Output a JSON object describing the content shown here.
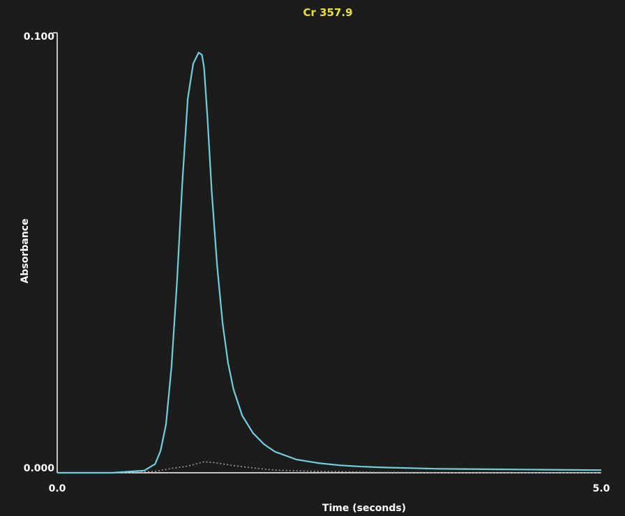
{
  "chart_data": {
    "type": "line",
    "title": "Cr 357.9",
    "xlabel": "Time (seconds)",
    "ylabel": "Absorbance",
    "xlim": [
      0.0,
      5.0
    ],
    "ylim": [
      0.0,
      0.1
    ],
    "x_tick_labels": [
      "0.0",
      "5.0"
    ],
    "y_tick_labels": [
      "0.000",
      "0.100"
    ],
    "grid": false,
    "colors": {
      "background": "#1c1c1c",
      "title": "#e8e03a",
      "axes": "#ffffff",
      "signal": "#6fd0dc",
      "background_signal": "#9aa0a0"
    },
    "series": [
      {
        "style": "solid",
        "x": [
          0.0,
          0.5,
          0.8,
          0.9,
          0.95,
          1.0,
          1.05,
          1.1,
          1.15,
          1.2,
          1.25,
          1.3,
          1.33,
          1.35,
          1.38,
          1.42,
          1.47,
          1.52,
          1.57,
          1.62,
          1.7,
          1.8,
          1.9,
          2.0,
          2.2,
          2.4,
          2.6,
          2.8,
          3.0,
          3.5,
          4.0,
          4.5,
          5.0
        ],
        "y": [
          0.0,
          0.0,
          0.0005,
          0.002,
          0.005,
          0.011,
          0.024,
          0.043,
          0.066,
          0.085,
          0.093,
          0.0955,
          0.095,
          0.092,
          0.081,
          0.064,
          0.047,
          0.034,
          0.025,
          0.019,
          0.013,
          0.009,
          0.0065,
          0.0048,
          0.003,
          0.0022,
          0.0017,
          0.0014,
          0.0012,
          0.0009,
          0.0008,
          0.0007,
          0.0006
        ]
      },
      {
        "style": "dotted",
        "x": [
          0.0,
          0.6,
          0.9,
          1.05,
          1.2,
          1.35,
          1.45,
          1.6,
          1.8,
          2.0,
          2.4,
          3.0,
          4.0,
          5.0
        ],
        "y": [
          0.0,
          0.0,
          0.0003,
          0.001,
          0.0015,
          0.0025,
          0.0023,
          0.0017,
          0.0011,
          0.0006,
          0.0003,
          0.0001,
          0.0,
          0.0
        ]
      }
    ]
  }
}
